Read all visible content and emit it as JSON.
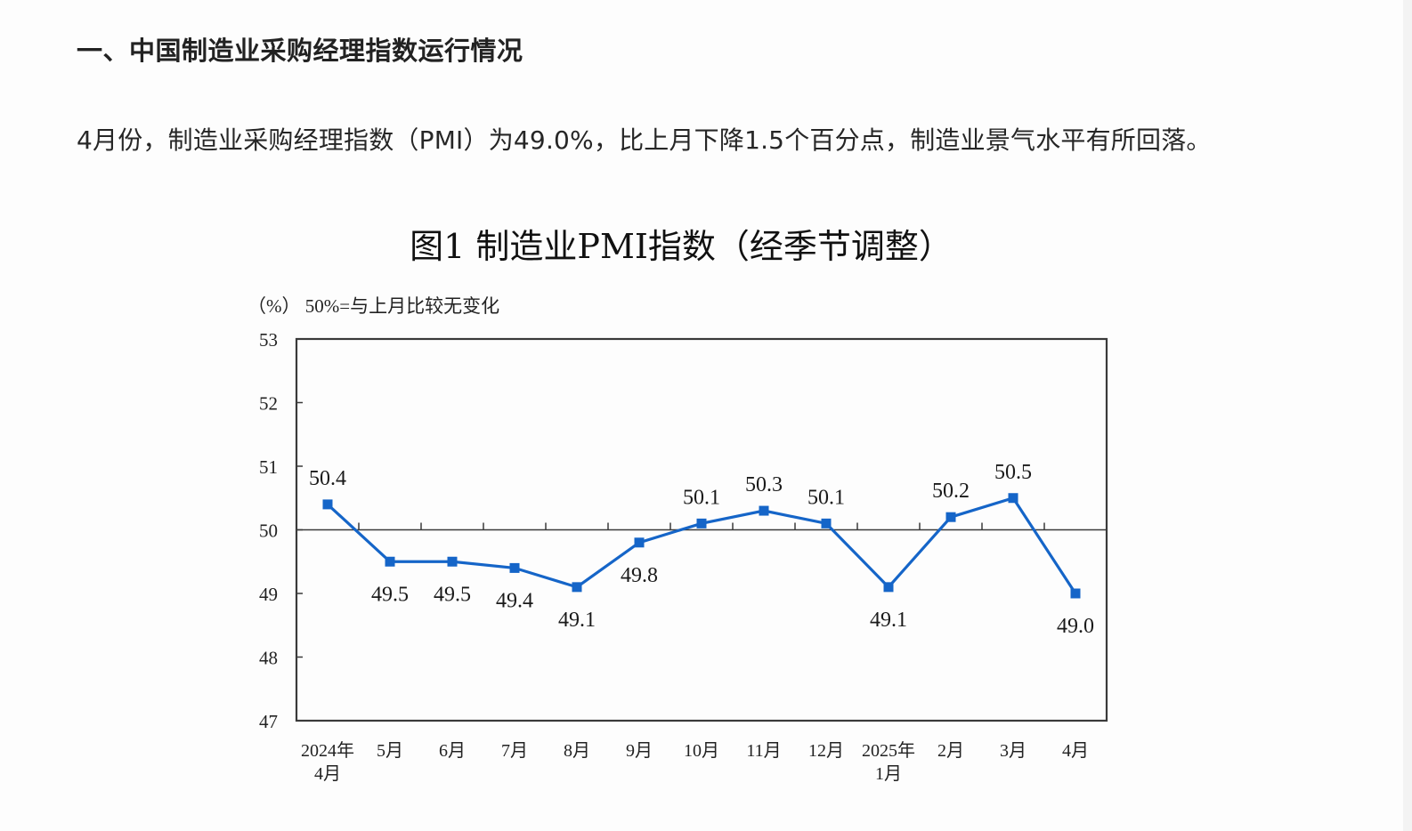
{
  "section": {
    "heading": "一、中国制造业采购经理指数运行情况",
    "paragraph": "4月份，制造业采购经理指数（PMI）为49.0%，比上月下降1.5个百分点，制造业景气水平有所回落。"
  },
  "chart": {
    "title": "图1  制造业PMI指数（经季节调整）",
    "unit_note": "（%） 50%=与上月比较无变化",
    "line_color": "#1565c8",
    "axis_color": "#3a3a3a"
  },
  "chart_data": {
    "type": "line",
    "title": "图1  制造业PMI指数（经季节调整）",
    "subtitle": "（%） 50%=与上月比较无变化",
    "xlabel": "",
    "ylabel": "%",
    "ylim": [
      47,
      53
    ],
    "yticks": [
      47,
      48,
      49,
      50,
      51,
      52,
      53
    ],
    "reference_line": 50,
    "grid": false,
    "legend": null,
    "categories": [
      [
        "2024年",
        "4月"
      ],
      [
        "5月"
      ],
      [
        "6月"
      ],
      [
        "7月"
      ],
      [
        "8月"
      ],
      [
        "9月"
      ],
      [
        "10月"
      ],
      [
        "11月"
      ],
      [
        "12月"
      ],
      [
        "2025年",
        "1月"
      ],
      [
        "2月"
      ],
      [
        "3月"
      ],
      [
        "4月"
      ]
    ],
    "series": [
      {
        "name": "制造业PMI",
        "values": [
          50.4,
          49.5,
          49.5,
          49.4,
          49.1,
          49.8,
          50.1,
          50.3,
          50.1,
          49.1,
          50.2,
          50.5,
          49.0
        ],
        "labels": [
          "50.4",
          "49.5",
          "49.5",
          "49.4",
          "49.1",
          "49.8",
          "50.1",
          "50.3",
          "50.1",
          "49.1",
          "50.2",
          "50.5",
          "49.0"
        ],
        "label_positions": [
          "above",
          "below",
          "below",
          "below",
          "below",
          "below",
          "above",
          "above",
          "above",
          "below",
          "above",
          "above",
          "below"
        ],
        "marker": "square"
      }
    ]
  }
}
